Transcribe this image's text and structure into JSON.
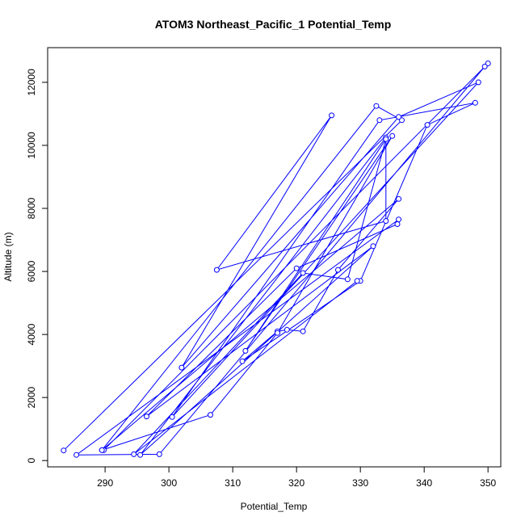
{
  "chart_data": {
    "type": "line",
    "title": "ATOM3 Northeast_Pacific_1 Potential_Temp",
    "xlabel": "Potential_Temp",
    "ylabel": "Altitude (m)",
    "xlim": [
      281,
      352
    ],
    "ylim": [
      -200,
      13100
    ],
    "xticks": [
      290,
      300,
      310,
      320,
      330,
      340,
      350
    ],
    "yticks": [
      0,
      2000,
      4000,
      6000,
      8000,
      10000,
      12000
    ],
    "grid": false,
    "marker": "open-circle",
    "colors": {
      "series": "#0000FF",
      "axis": "#000000",
      "text": "#000000"
    },
    "series": [
      {
        "x": [
          283.5,
          336.5,
          332.5,
          289.5,
          289.8,
          350.0,
          349.5,
          298.5,
          285.5,
          336.0,
          335.8,
          320.0,
          296.5,
          332.0,
          295.5,
          334.0,
          334.0,
          307.5,
          325.5,
          302.0,
          336.0,
          348.5,
          300.5,
          333.0,
          348.0,
          340.5,
          330.0,
          311.5,
          317.0,
          318.5,
          321.0,
          326.5,
          336.0,
          289.5,
          306.5,
          317.0,
          335.0,
          312.0,
          334.0,
          328.0,
          321.0,
          294.5,
          329.5
        ],
        "y": [
          320,
          10800,
          11250,
          330,
          330,
          12600,
          12500,
          200,
          180,
          7650,
          7500,
          6100,
          1400,
          6800,
          180,
          10250,
          7600,
          6050,
          10950,
          2950,
          10900,
          12000,
          1380,
          10800,
          11350,
          10650,
          5700,
          3150,
          4100,
          4150,
          4100,
          6050,
          8300,
          330,
          1450,
          4050,
          10300,
          3480,
          10200,
          5750,
          5950,
          200,
          5700
        ]
      }
    ]
  }
}
